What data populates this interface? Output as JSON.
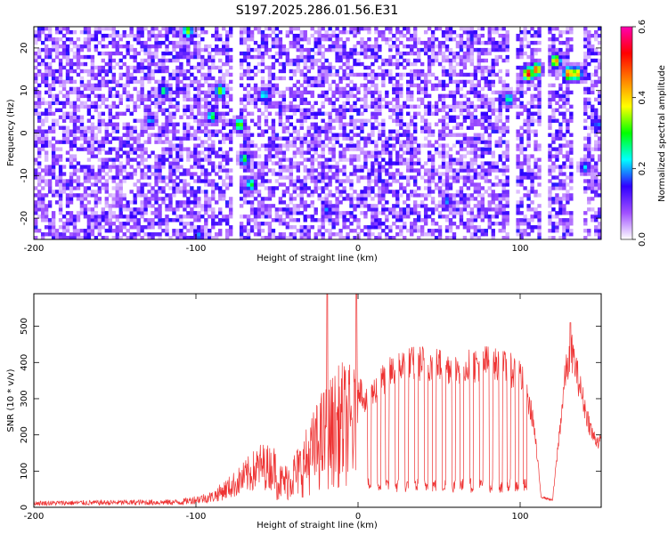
{
  "chart_data": [
    {
      "type": "heatmap",
      "title": "S197.2025.286.01.56.E31",
      "xlabel": "Height of straight line (km)",
      "ylabel": "Frequency (Hz)",
      "xlim": [
        -200,
        150
      ],
      "ylim": [
        -25,
        25
      ],
      "x_ticks": [
        -200,
        -100,
        0,
        100
      ],
      "y_ticks": [
        -20,
        -10,
        0,
        10,
        20
      ],
      "colorbar": {
        "label": "Normalized spectral amplitude",
        "range": [
          0.0,
          0.6
        ],
        "ticks": [
          0.0,
          0.2,
          0.4,
          0.6
        ],
        "colors": [
          "#ffffff",
          "#a050ff",
          "#3000ff",
          "#00ffff",
          "#00ff00",
          "#ffff00",
          "#ff8000",
          "#ff0000",
          "#ff00b0"
        ]
      },
      "grid": false,
      "hotspots": [
        {
          "x": -105,
          "y": 24,
          "v": 0.35
        },
        {
          "x": -120,
          "y": 10,
          "v": 0.28
        },
        {
          "x": -128,
          "y": 3,
          "v": 0.22
        },
        {
          "x": -85,
          "y": 10,
          "v": 0.35
        },
        {
          "x": -90,
          "y": 4,
          "v": 0.3
        },
        {
          "x": -73,
          "y": 2,
          "v": 0.35
        },
        {
          "x": -70,
          "y": -6,
          "v": 0.3
        },
        {
          "x": -66,
          "y": -12,
          "v": 0.3
        },
        {
          "x": -58,
          "y": 9,
          "v": 0.25
        },
        {
          "x": -19,
          "y": -18,
          "v": 0.2
        },
        {
          "x": 55,
          "y": -16,
          "v": 0.2
        },
        {
          "x": 93,
          "y": 8,
          "v": 0.28
        },
        {
          "x": 105,
          "y": 14,
          "v": 0.55
        },
        {
          "x": 110,
          "y": 15,
          "v": 0.5
        },
        {
          "x": 122,
          "y": 17,
          "v": 0.45
        },
        {
          "x": 130,
          "y": 14,
          "v": 0.5
        },
        {
          "x": 135,
          "y": 14,
          "v": 0.45
        },
        {
          "x": 140,
          "y": -8,
          "v": 0.22
        },
        {
          "x": 148,
          "y": 2,
          "v": 0.2
        },
        {
          "x": -98,
          "y": -24,
          "v": 0.2
        }
      ],
      "blank_bands": [
        {
          "x0": -77,
          "x1": -73
        },
        {
          "x0": 93,
          "x1": 98
        },
        {
          "x0": 113,
          "x1": 118
        },
        {
          "x0": 133,
          "x1": 140
        }
      ]
    },
    {
      "type": "line",
      "xlabel": "Height of straight line (km)",
      "ylabel": "SNR (10 * v/v)",
      "xlim": [
        -200,
        150
      ],
      "ylim": [
        0,
        590
      ],
      "x_ticks": [
        -200,
        -100,
        0,
        100
      ],
      "y_ticks": [
        0,
        100,
        200,
        300,
        400,
        500
      ],
      "grid": false,
      "color": "#ee3333",
      "envelope": {
        "x": [
          -200,
          -110,
          -90,
          -75,
          -60,
          -45,
          -35,
          -22,
          -10,
          0,
          5,
          15,
          25,
          40,
          60,
          80,
          100,
          108,
          113,
          120,
          128,
          132,
          140,
          145,
          150
        ],
        "y": [
          12,
          15,
          30,
          70,
          120,
          110,
          170,
          300,
          370,
          350,
          300,
          360,
          400,
          410,
          395,
          410,
          380,
          250,
          30,
          20,
          380,
          440,
          280,
          200,
          180
        ]
      },
      "dropouts": [
        7,
        13,
        18,
        24,
        30,
        36,
        42,
        47,
        53,
        59,
        64,
        70,
        76,
        82,
        88,
        93,
        98,
        103
      ],
      "peaks": [
        {
          "x": -19,
          "y": 590
        },
        {
          "x": -1,
          "y": 590
        },
        {
          "x": 131,
          "y": 510
        }
      ]
    }
  ]
}
